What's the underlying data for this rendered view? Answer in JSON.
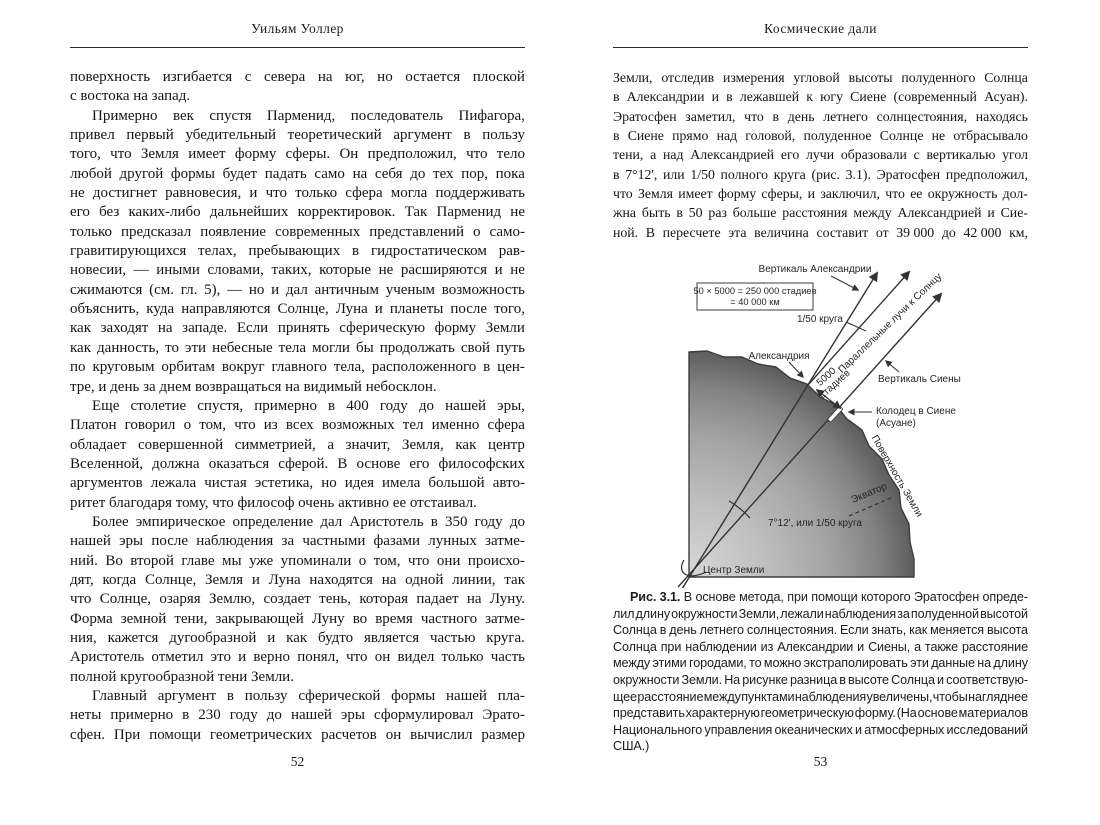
{
  "left_page": {
    "header": "Уильям Уоллер",
    "page_number": "52",
    "paragraphs": [
      {
        "indent": false,
        "lines": [
          "поверхность изгибается с севера на юг, но остается плоской",
          "с востока на запад."
        ]
      },
      {
        "indent": true,
        "lines": [
          "Примерно век спустя Парменид, последователь Пифагора,",
          "привел первый убедительный теоретический аргумент в пользу",
          "того, что Земля имеет форму сферы. Он предположил, что тело",
          "любой другой формы будет падать само на себя до тех пор, пока",
          "не достигнет равновесия, и что только сфера могла поддерживать",
          "его без каких-либо дальнейших корректировок. Так Парменид не",
          "только предсказал появление современных представлений о само-",
          "гравитирующихся телах, пребывающих в гидростатическом рав-",
          "новесии, — иными словами, таких, которые не расширяются и не",
          "сжимаются (см. гл. 5), — но и дал античным ученым возможность",
          "объяснить, куда направляются Солнце, Луна и планеты после того,",
          "как заходят на западе. Если принять сферическую форму Земли",
          "как данность, то эти небесные тела могли бы продолжать свой путь",
          "по круговым орбитам вокруг главного тела, расположенного в цен-",
          "тре, и день за днем возвращаться на видимый небосклон."
        ]
      },
      {
        "indent": true,
        "lines": [
          "Еще столетие спустя, примерно в 400 году до нашей эры,",
          "Платон говорил о том, что из всех возможных тел именно сфера",
          "обладает совершенной симметрией, а значит, Земля, как центр",
          "Вселенной, должна оказаться сферой. В основе его философских",
          "аргументов лежала чистая эстетика, но идея имела большой авто-",
          "ритет благодаря тому, что философ очень активно ее отстаивал."
        ]
      },
      {
        "indent": true,
        "lines": [
          "Более эмпирическое определение дал Аристотель в 350 году до",
          "нашей эры после наблюдения за частными фазами лунных затме-",
          "ний. Во второй главе мы уже упоминали о том, что они происхо-",
          "дят, когда Солнце, Земля и Луна находятся на одной линии, так",
          "что Солнце, озаряя Землю, создает тень, которая падает на Луну.",
          "Форма земной тени, закрывающей Луну во время частного затме-",
          "ния, кажется дугообразной и как будто является частью круга.",
          "Аристотель отметил это и верно понял, что он видел только часть",
          "полной кругообразной тени Земли."
        ]
      },
      {
        "indent": true,
        "cont": true,
        "lines": [
          "Главный аргумент в пользу сферической формы нашей пла-",
          "неты примерно в 230 году до нашей эры сформулировал Эрато-",
          "сфен. При помощи геометрических расчетов он вычислил размер"
        ]
      }
    ]
  },
  "right_page": {
    "header": "Космические дали",
    "page_number": "53",
    "paragraphs": [
      {
        "indent": false,
        "cont": true,
        "lines": [
          "Земли, отследив измерения угловой высоты полуденного Солнца",
          "в Александрии и в лежавшей к югу Сиене (современный Асуан).",
          "Эратосфен заметил, что в день летнего солнцестояния, находясь",
          "в Сиене прямо над головой, полуденное Солнце не отбрасывало",
          "тени, а над Александрией его лучи образовали с вертикалью угол",
          "в 7°12', или 1/50 полного круга (рис. 3.1). Эратосфен предположил,",
          "что Земля имеет форму сферы, и заключил, что ее окружность дол-",
          "жна быть в 50 раз больше расстояния между Александрией и Сие-",
          "ной. В пересчете эта величина составит от 39 000 до 42 000 км,"
        ]
      }
    ],
    "figure": {
      "box_line1": "50 × 5000 = 250 000 стадиев",
      "box_line2": "= 40 000 км",
      "label_vertical_alexandria": "Вертикаль Александрии",
      "label_fraction": "1/50 круга",
      "label_parallel_rays": "Параллельные лучи к Солнцу",
      "label_alexandria": "Александрия",
      "label_5000_line1": "5000",
      "label_5000_line2": "стадиев",
      "label_vertical_syene": "Вертикаль Сиены",
      "label_well_line1": "Колодец в Сиене",
      "label_well_line2": "(Асуане)",
      "label_surface": "Поверхность Земли",
      "label_equator": "Экватор",
      "label_angle": "7°12', или 1/50 круга",
      "label_center": "Центр Земли"
    },
    "caption": {
      "paragraphs": [
        {
          "indent": true,
          "bold_words": 2,
          "lines": [
            "Рис. 3.1. В основе метода, при помощи которого Эратосфен опреде-",
            "лил длину окружности Земли, лежали наблюдения за полуденной высотой",
            "Солнца в день летнего солнцестояния. Если знать, как меняется высота",
            "Солнца при наблюдении из Александрии и Сиены, а также расстояние",
            "между этими городами, то можно экстраполировать эти данные на длину",
            "окружности Земли. На рисунке разница в высоте Солнца и соответствую-",
            "щее расстояние между пунктами наблюдения увеличены, чтобы нагляднее",
            "представить характерную геометрическую форму. (На основе материалов",
            "Национального управления океанических и атмосферных исследований",
            "США.)"
          ]
        }
      ]
    }
  }
}
